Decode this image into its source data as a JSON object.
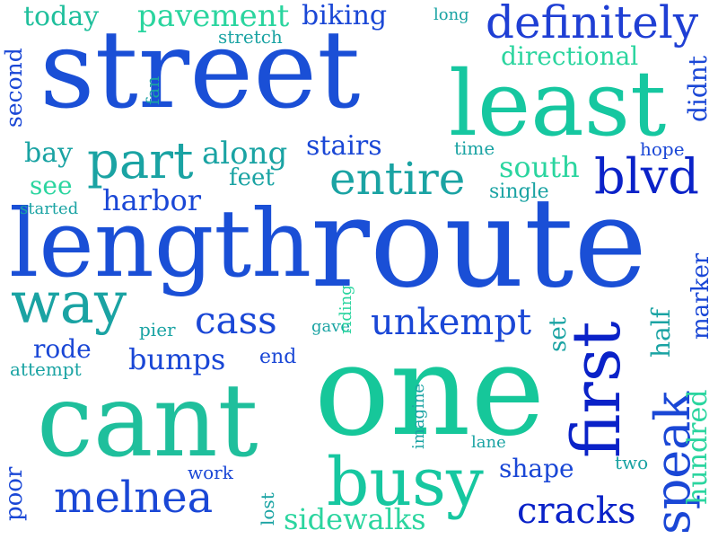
{
  "palette": {
    "dark_blue": "#0a22c8",
    "royal_blue": "#1a47d6",
    "blue": "#1f5fd8",
    "teal": "#1aa3a3",
    "green": "#16c79a",
    "mint": "#2bd59f"
  },
  "words": [
    {
      "id": "street",
      "text": "street",
      "color": "#1a4fd6"
    },
    {
      "id": "route",
      "text": "route",
      "color": "#1a4fd6"
    },
    {
      "id": "length",
      "text": "length",
      "color": "#1a4fd6"
    },
    {
      "id": "one",
      "text": "one",
      "color": "#16c79a"
    },
    {
      "id": "cant",
      "text": "cant",
      "color": "#1fbf9c"
    },
    {
      "id": "least",
      "text": "least",
      "color": "#16c7a0"
    },
    {
      "id": "busy",
      "text": "busy",
      "color": "#16c7a0"
    },
    {
      "id": "first",
      "text": "first",
      "color": "#0a22c8"
    },
    {
      "id": "way",
      "text": "way",
      "color": "#1aa3a3"
    },
    {
      "id": "definitely",
      "text": "definitely",
      "color": "#1f3fd4"
    },
    {
      "id": "part",
      "text": "part",
      "color": "#1aa3a3"
    },
    {
      "id": "entire",
      "text": "entire",
      "color": "#1aa3a3"
    },
    {
      "id": "blvd",
      "text": "blvd",
      "color": "#0a22c8"
    },
    {
      "id": "speak",
      "text": "speak",
      "color": "#1a47d6"
    },
    {
      "id": "melnea",
      "text": "melnea",
      "color": "#1a47d6"
    },
    {
      "id": "cass",
      "text": "cass",
      "color": "#1a47d6"
    },
    {
      "id": "unkempt",
      "text": "unkempt",
      "color": "#1a47d6"
    },
    {
      "id": "cracks",
      "text": "cracks",
      "color": "#0a22c8"
    },
    {
      "id": "sidewalks",
      "text": "sidewalks",
      "color": "#2bd59f"
    },
    {
      "id": "pavement",
      "text": "pavement",
      "color": "#2bd59f"
    },
    {
      "id": "along",
      "text": "along",
      "color": "#1aa3a3"
    },
    {
      "id": "today",
      "text": "today",
      "color": "#1fbf9c"
    },
    {
      "id": "biking",
      "text": "biking",
      "color": "#1a47d6"
    },
    {
      "id": "harbor",
      "text": "harbor",
      "color": "#1a47d6"
    },
    {
      "id": "bumps",
      "text": "bumps",
      "color": "#1a47d6"
    },
    {
      "id": "stairs",
      "text": "stairs",
      "color": "#1a47d6"
    },
    {
      "id": "south",
      "text": "south",
      "color": "#2bd59f"
    },
    {
      "id": "directional",
      "text": "directional",
      "color": "#2bd59f"
    },
    {
      "id": "shape",
      "text": "shape",
      "color": "#1a47d6"
    },
    {
      "id": "hundred",
      "text": "hundred",
      "color": "#2bd59f"
    },
    {
      "id": "didnt",
      "text": "didnt",
      "color": "#1a47d6"
    },
    {
      "id": "marker",
      "text": "marker",
      "color": "#1a47d6"
    },
    {
      "id": "half",
      "text": "half",
      "color": "#1aa3a3"
    },
    {
      "id": "second",
      "text": "second",
      "color": "#1a47d6"
    },
    {
      "id": "bay",
      "text": "bay",
      "color": "#1aa3a3"
    },
    {
      "id": "see",
      "text": "see",
      "color": "#2bd59f"
    },
    {
      "id": "feet",
      "text": "feet",
      "color": "#1aa3a3"
    },
    {
      "id": "rode",
      "text": "rode",
      "color": "#1a47d6"
    },
    {
      "id": "poor",
      "text": "poor",
      "color": "#1a47d6"
    },
    {
      "id": "set",
      "text": "set",
      "color": "#1aa3a3"
    },
    {
      "id": "single",
      "text": "single",
      "color": "#1aa3a3"
    },
    {
      "id": "end",
      "text": "end",
      "color": "#1a47d6"
    },
    {
      "id": "work",
      "text": "work",
      "color": "#1a47d6"
    },
    {
      "id": "two",
      "text": "two",
      "color": "#1aa3a3"
    },
    {
      "id": "lane",
      "text": "lane",
      "color": "#1aa3a3"
    },
    {
      "id": "time",
      "text": "time",
      "color": "#1aa3a3"
    },
    {
      "id": "hope",
      "text": "hope",
      "color": "#1a47d6"
    },
    {
      "id": "fan",
      "text": "fan",
      "color": "#1aa3a3"
    },
    {
      "id": "stretch",
      "text": "stretch",
      "color": "#1aa3a3"
    },
    {
      "id": "long",
      "text": "long",
      "color": "#1aa3a3"
    },
    {
      "id": "started",
      "text": "started",
      "color": "#1aa3a3"
    },
    {
      "id": "pier",
      "text": "pier",
      "color": "#1aa3a3"
    },
    {
      "id": "gave",
      "text": "gave",
      "color": "#1aa3a3"
    },
    {
      "id": "riding",
      "text": "riding",
      "color": "#2bd59f"
    },
    {
      "id": "attempt",
      "text": "attempt",
      "color": "#1aa3a3"
    },
    {
      "id": "imagine",
      "text": "imagine",
      "color": "#1aa3a3"
    },
    {
      "id": "lost",
      "text": "lost",
      "color": "#1aa3a3"
    }
  ]
}
